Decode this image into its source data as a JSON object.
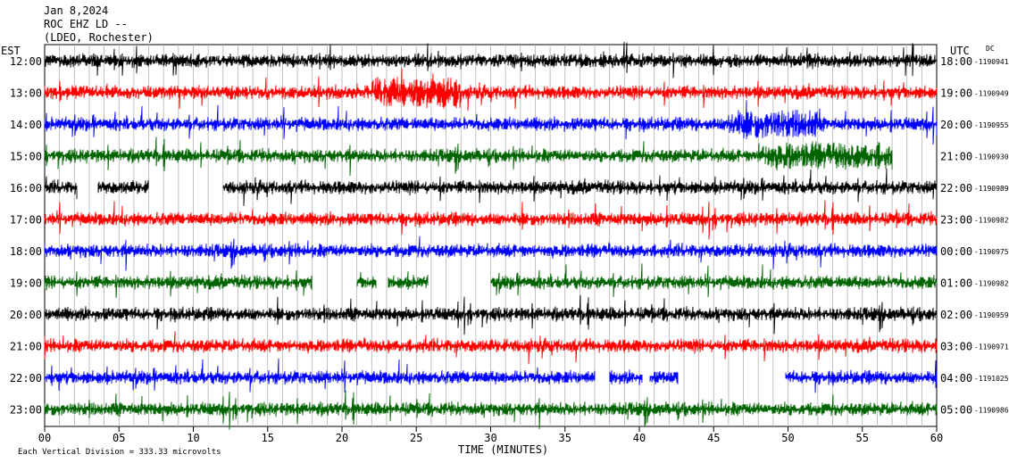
{
  "chart_data": {
    "type": "line",
    "title_lines": [
      "Jan 8,2024",
      "ROC EHZ LD --",
      "(LDEO, Rochester)"
    ],
    "left_axis_title": "EST",
    "right_axis_title": "UTC",
    "dc_label": "DC",
    "left_hours": [
      "12:00",
      "13:00",
      "14:00",
      "15:00",
      "16:00",
      "17:00",
      "18:00",
      "19:00",
      "20:00",
      "21:00",
      "22:00",
      "23:00"
    ],
    "right_hours": [
      "18:00",
      "19:00",
      "20:00",
      "21:00",
      "22:00",
      "23:00",
      "00:00",
      "01:00",
      "02:00",
      "03:00",
      "04:00",
      "05:00"
    ],
    "dc_values": [
      "-1190941",
      "-1190949",
      "-1190955",
      "-1190930",
      "-1190989",
      "-1190982",
      "-1190975",
      "-1190982",
      "-1190959",
      "-1190971",
      "-1191025",
      "-1190986"
    ],
    "trace_colors": [
      "#000000",
      "#ff0000",
      "#0000ff",
      "#006400",
      "#000000",
      "#ff0000",
      "#0000ff",
      "#006400",
      "#000000",
      "#ff0000",
      "#0000ff",
      "#006400"
    ],
    "xlabel": "TIME (MINUTES)",
    "xticks": [
      "00",
      "05",
      "10",
      "15",
      "20",
      "25",
      "30",
      "35",
      "40",
      "45",
      "50",
      "55",
      "60"
    ],
    "xlim": [
      0,
      60
    ],
    "footer": "Each Vertical Division =  333.33 microvolts",
    "gaps_minutes": [
      [],
      [],
      [],
      [
        [
          57.0,
          60.0
        ]
      ],
      [
        [
          2.2,
          3.6
        ],
        [
          7.0,
          12.0
        ]
      ],
      [],
      [],
      [
        [
          18.0,
          21.0
        ],
        [
          22.3,
          23.1
        ],
        [
          25.8,
          30.0
        ]
      ],
      [],
      [],
      [
        [
          37.0,
          38.0
        ],
        [
          40.2,
          40.7
        ],
        [
          42.6,
          49.8
        ]
      ],
      []
    ]
  }
}
